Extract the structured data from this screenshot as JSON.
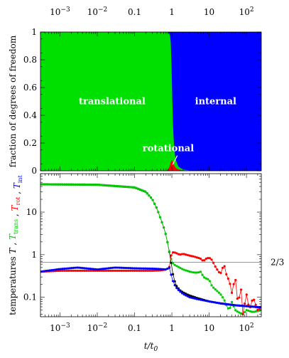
{
  "chart_data": [
    {
      "type": "area",
      "subtype": "stacked-100-percent",
      "x_scale": "log",
      "xlim": [
        0.0003,
        250
      ],
      "ylim": [
        0,
        1
      ],
      "ylabel": "fraction of degrees of freedom",
      "x_ticks": [
        {
          "value": 0.001,
          "label": "10",
          "sup": "−3"
        },
        {
          "value": 0.01,
          "label": "10",
          "sup": "−2"
        },
        {
          "value": 0.1,
          "label": "0.1",
          "sup": ""
        },
        {
          "value": 1,
          "label": "1",
          "sup": ""
        },
        {
          "value": 10,
          "label": "10",
          "sup": ""
        },
        {
          "value": 100,
          "label": "10",
          "sup": "2"
        }
      ],
      "y_ticks": [
        0,
        0.2,
        0.4,
        0.6,
        0.8,
        1
      ],
      "series": [
        {
          "name": "translational",
          "color": "#00e000"
        },
        {
          "name": "rotational",
          "color": "#ff0000"
        },
        {
          "name": "internal",
          "color": "#0000ff"
        }
      ],
      "x": [
        0.0003,
        0.5,
        0.7,
        0.8,
        0.85,
        0.9,
        0.95,
        1.0,
        1.05,
        1.1,
        1.2,
        1.3,
        1.5,
        1.8,
        2.2,
        3,
        5,
        10,
        250
      ],
      "fractions": {
        "rotational": [
          0,
          0,
          0.002,
          0.01,
          0.025,
          0.045,
          0.07,
          0.08,
          0.07,
          0.05,
          0.03,
          0.018,
          0.01,
          0.005,
          0.002,
          0.001,
          0,
          0,
          0
        ],
        "internal": [
          0,
          0,
          0.001,
          0.004,
          0.01,
          0.03,
          0.1,
          0.35,
          0.6,
          0.75,
          0.88,
          0.93,
          0.97,
          0.985,
          0.993,
          0.997,
          0.999,
          1.0,
          1.0
        ]
      },
      "labels": [
        {
          "text": "translational",
          "series": "translational"
        },
        {
          "text": "internal",
          "series": "internal"
        },
        {
          "text": "rotational",
          "series": "rotational"
        }
      ]
    },
    {
      "type": "line",
      "x_scale": "log",
      "y_scale": "log",
      "xlim": [
        0.0003,
        250
      ],
      "ylim": [
        0.035,
        80
      ],
      "xlabel": "t/t",
      "xlabel_sub": "0",
      "ylabel_parts": [
        {
          "text": "T",
          "sub": "",
          "color": "#000000"
        },
        {
          "text": " , ",
          "sub": "",
          "color": "#000000"
        },
        {
          "text": "T",
          "sub": "trans",
          "color": "#00cc00"
        },
        {
          "text": " , ",
          "sub": "",
          "color": "#000000"
        },
        {
          "text": "T",
          "sub": "rot",
          "color": "#ff0000"
        },
        {
          "text": " , ",
          "sub": "",
          "color": "#000000"
        },
        {
          "text": "T",
          "sub": "int",
          "color": "#0000ff"
        }
      ],
      "ylabel_prefix": "temperatures",
      "x_ticks": [
        {
          "value": 0.001,
          "label": "10",
          "sup": "−3"
        },
        {
          "value": 0.01,
          "label": "10",
          "sup": "−2"
        },
        {
          "value": 0.1,
          "label": "0.1",
          "sup": ""
        },
        {
          "value": 1,
          "label": "1",
          "sup": ""
        },
        {
          "value": 10,
          "label": "10",
          "sup": ""
        },
        {
          "value": 100,
          "label": "10",
          "sup": "2"
        }
      ],
      "y_ticks": [
        {
          "value": 0.1,
          "label": "0.1"
        },
        {
          "value": 1,
          "label": "1"
        },
        {
          "value": 10,
          "label": "10"
        }
      ],
      "reference_line": {
        "value": 0.6667,
        "label": "2/3"
      },
      "series": [
        {
          "name": "T",
          "color": "#000000",
          "x": [
            0.0003,
            0.01,
            0.1,
            0.2,
            0.3,
            0.4,
            0.5,
            0.6,
            0.7,
            0.8,
            0.9,
            1.0,
            1.1,
            1.3,
            1.6,
            2,
            3,
            5,
            10,
            20,
            50,
            100,
            250
          ],
          "y": [
            45,
            44,
            38,
            30,
            20,
            12,
            7,
            4.5,
            2.8,
            1.6,
            0.9,
            0.5,
            0.3,
            0.19,
            0.15,
            0.13,
            0.11,
            0.095,
            0.08,
            0.072,
            0.065,
            0.062,
            0.058
          ]
        },
        {
          "name": "T_trans",
          "color": "#00cc00",
          "x": [
            0.0003,
            0.01,
            0.1,
            0.2,
            0.3,
            0.4,
            0.5,
            0.6,
            0.7,
            0.8,
            0.9,
            1.0,
            1.1,
            1.3,
            1.6,
            2,
            3,
            4,
            5,
            6,
            7,
            8,
            10,
            12,
            15,
            20,
            25,
            30,
            35,
            40,
            50,
            60,
            80,
            100,
            150,
            250
          ],
          "y": [
            45,
            44,
            38,
            30,
            20,
            12,
            7,
            4.5,
            2.8,
            1.6,
            0.95,
            0.7,
            0.6,
            0.55,
            0.5,
            0.45,
            0.4,
            0.38,
            0.38,
            0.4,
            0.3,
            0.28,
            0.26,
            0.18,
            0.15,
            0.12,
            0.09,
            0.06,
            0.05,
            0.08,
            0.05,
            0.045,
            0.04,
            0.05,
            0.045,
            0.05
          ]
        },
        {
          "name": "T_rot",
          "color": "#ff0000",
          "x": [
            0.0003,
            0.001,
            0.01,
            0.1,
            0.3,
            0.5,
            0.7,
            0.85,
            0.9,
            1.0,
            1.1,
            1.3,
            1.6,
            2,
            3,
            4,
            5,
            6,
            7,
            8,
            10,
            12,
            15,
            20,
            25,
            30,
            35,
            40,
            50,
            60,
            70,
            80,
            100,
            120,
            150,
            200,
            250
          ],
          "y": [
            0.4,
            0.42,
            0.42,
            0.42,
            0.42,
            0.43,
            0.45,
            0.5,
            0.8,
            1.1,
            1.15,
            1.1,
            1.0,
            1.05,
            0.95,
            0.9,
            0.85,
            0.8,
            0.7,
            0.8,
            0.85,
            0.75,
            0.5,
            0.35,
            0.6,
            0.3,
            0.25,
            0.12,
            0.3,
            0.06,
            0.2,
            0.04,
            0.12,
            0.05,
            0.1,
            0.05,
            0.06
          ]
        },
        {
          "name": "T_int",
          "color": "#0000ff",
          "x": [
            0.0003,
            0.001,
            0.003,
            0.01,
            0.03,
            0.1,
            0.3,
            0.5,
            0.7,
            0.85,
            0.9,
            1.0,
            1.1,
            1.3,
            1.6,
            2,
            3,
            5,
            10,
            20,
            50,
            100,
            250
          ],
          "y": [
            0.4,
            0.46,
            0.5,
            0.45,
            0.5,
            0.48,
            0.47,
            0.46,
            0.45,
            0.5,
            0.4,
            0.3,
            0.22,
            0.17,
            0.14,
            0.12,
            0.1,
            0.09,
            0.08,
            0.072,
            0.065,
            0.062,
            0.058
          ]
        }
      ]
    }
  ]
}
